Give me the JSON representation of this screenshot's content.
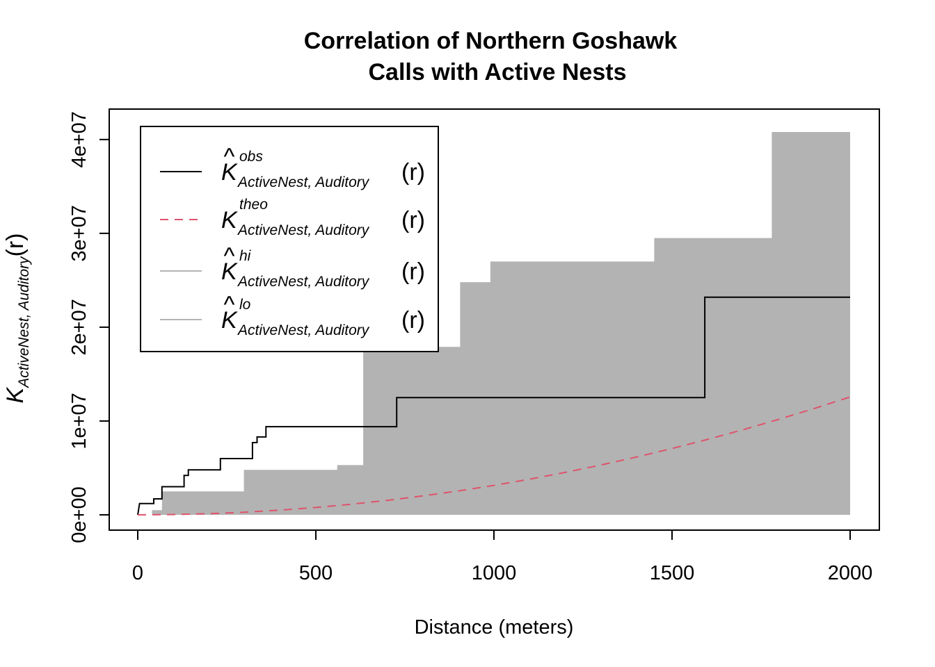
{
  "chart_data": {
    "type": "line",
    "title_lines": [
      "Correlation of Northern Goshawk",
      "Calls with Active Nests"
    ],
    "xlabel": "Distance (meters)",
    "ylabel": {
      "symbol": "K",
      "subscript": "ActiveNest, Auditory",
      "arg": "(r)"
    },
    "xlim": [
      0,
      2000
    ],
    "ylim": [
      0,
      40800000
    ],
    "x_ticks": [
      0,
      500,
      1000,
      1500,
      2000
    ],
    "x_tick_labels": [
      "0",
      "500",
      "1000",
      "1500",
      "2000"
    ],
    "y_ticks": [
      0,
      10000000,
      20000000,
      30000000,
      40000000
    ],
    "y_tick_labels": [
      "0e+00",
      "1e+07",
      "2e+07",
      "3e+07",
      "4e+07"
    ],
    "grid": false,
    "legend_position": "top-left",
    "legend": [
      {
        "symbol": "K",
        "hat": true,
        "superscript": "obs",
        "subscript": "ActiveNest, Auditory",
        "arg": "(r)",
        "color": "#000000",
        "dash": "solid"
      },
      {
        "symbol": "K",
        "hat": false,
        "superscript": "theo",
        "subscript": "ActiveNest, Auditory",
        "arg": "(r)",
        "color": "#DF536B",
        "dash": "dashed"
      },
      {
        "symbol": "K",
        "hat": true,
        "superscript": "hi",
        "subscript": "ActiveNest, Auditory",
        "arg": "(r)",
        "color": "#B3B3B3",
        "dash": "solid"
      },
      {
        "symbol": "K",
        "hat": true,
        "superscript": "lo",
        "subscript": "ActiveNest, Auditory",
        "arg": "(r)",
        "color": "#B3B3B3",
        "dash": "solid"
      }
    ],
    "envelope_band": {
      "color": "#B3B3B3",
      "hi_steps": [
        [
          0,
          0
        ],
        [
          40,
          0
        ],
        [
          40,
          500000
        ],
        [
          68,
          500000
        ],
        [
          68,
          2500000
        ],
        [
          298,
          2500000
        ],
        [
          298,
          4800000
        ],
        [
          560,
          4800000
        ],
        [
          560,
          5300000
        ],
        [
          633,
          5300000
        ],
        [
          633,
          17900000
        ],
        [
          905,
          17900000
        ],
        [
          905,
          24800000
        ],
        [
          990,
          24800000
        ],
        [
          990,
          27000000
        ],
        [
          1450,
          27000000
        ],
        [
          1450,
          29500000
        ],
        [
          1780,
          29500000
        ],
        [
          1780,
          40800000
        ],
        [
          2000,
          40800000
        ]
      ],
      "lo_steps": [
        [
          0,
          0
        ],
        [
          2000,
          0
        ]
      ]
    },
    "series": [
      {
        "color": "#000000",
        "dash": "solid",
        "steps": [
          [
            0,
            0
          ],
          [
            5,
            1200000
          ],
          [
            45,
            1200000
          ],
          [
            45,
            1700000
          ],
          [
            68,
            1700000
          ],
          [
            68,
            3000000
          ],
          [
            130,
            3000000
          ],
          [
            130,
            4200000
          ],
          [
            142,
            4200000
          ],
          [
            142,
            4800000
          ],
          [
            232,
            4800000
          ],
          [
            232,
            6000000
          ],
          [
            322,
            6000000
          ],
          [
            322,
            7700000
          ],
          [
            335,
            7700000
          ],
          [
            335,
            8300000
          ],
          [
            360,
            8300000
          ],
          [
            360,
            9400000
          ],
          [
            727,
            9400000
          ],
          [
            727,
            12500000
          ],
          [
            1592,
            12500000
          ],
          [
            1592,
            23200000
          ],
          [
            2000,
            23200000
          ]
        ]
      },
      {
        "color": "#DF536B",
        "dash": "dashed",
        "formula": "pi * r^2",
        "x": [
          0,
          100,
          200,
          300,
          400,
          500,
          600,
          700,
          800,
          900,
          1000,
          1100,
          1200,
          1300,
          1400,
          1500,
          1600,
          1700,
          1800,
          1900,
          2000
        ],
        "values": [
          0,
          31416,
          125664,
          282743,
          502655,
          785398,
          1130973,
          1539380,
          2010619,
          2544690,
          3141593,
          3801327,
          4523893,
          5309292,
          6157522,
          7068583,
          8042477,
          9079203,
          10178760,
          11341150,
          12566371
        ]
      }
    ]
  }
}
